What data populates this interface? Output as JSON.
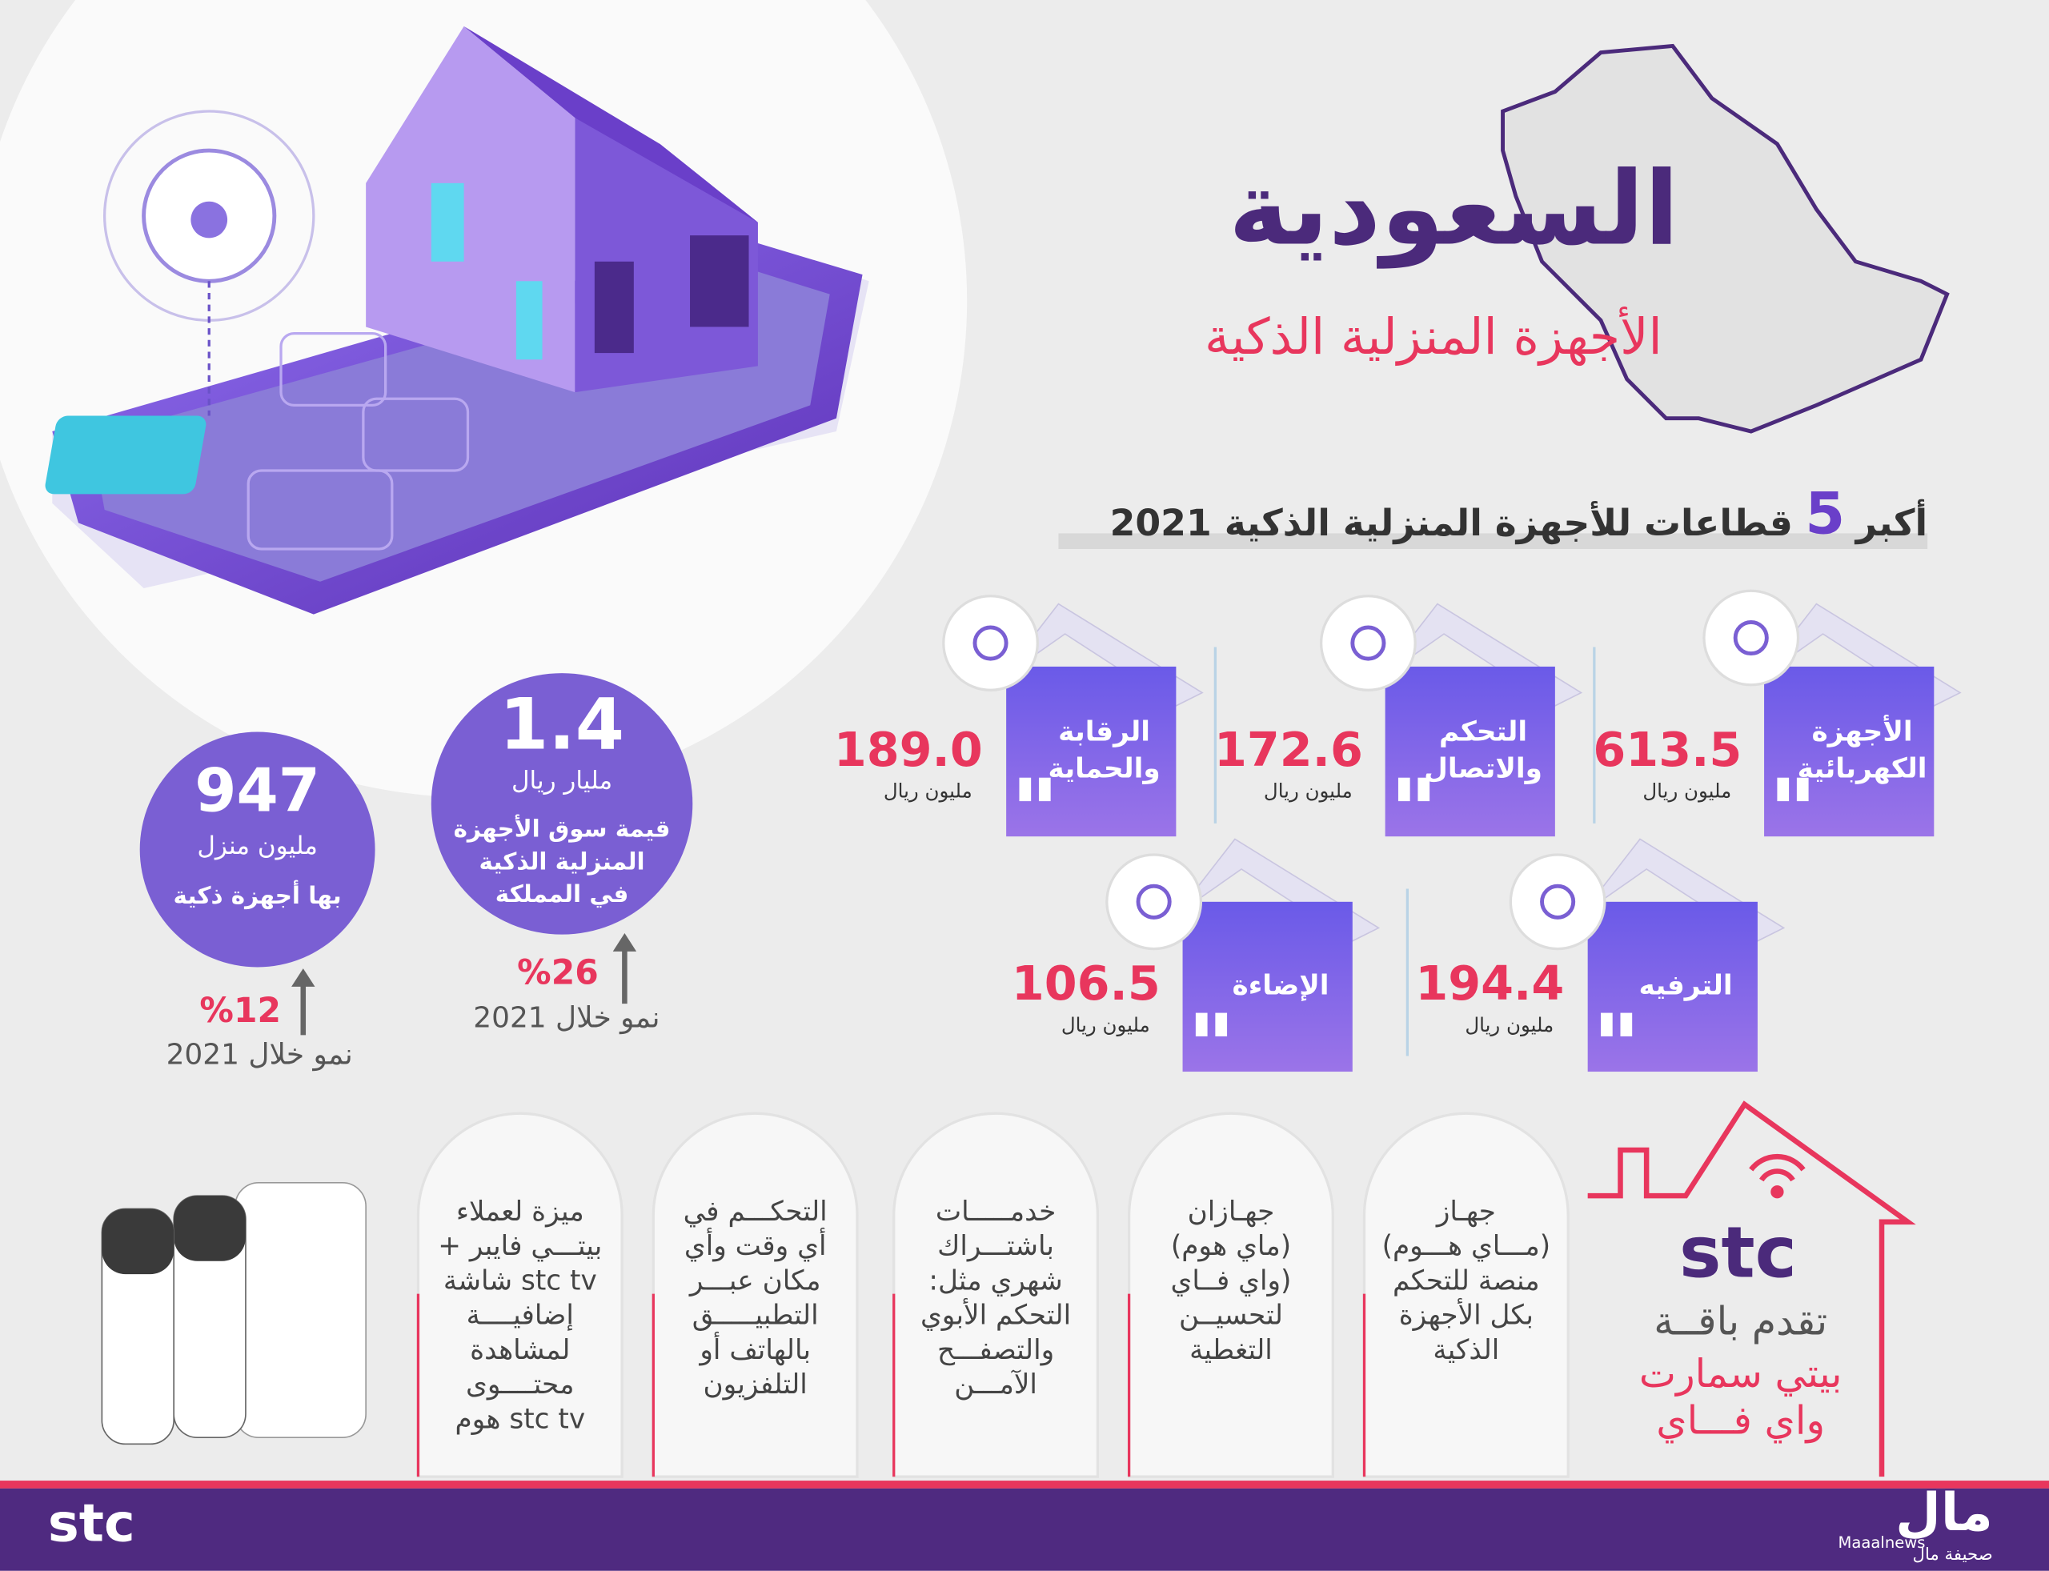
{
  "header": {
    "title": "السعودية",
    "subtitle": "الأجهزة المنزلية الذكية"
  },
  "stats": [
    {
      "value": "947",
      "unit": "مليون منزل",
      "label_lines": [
        "بها أجهزة ذكية"
      ],
      "growth": "%12",
      "growth_label": "نمو خلال 2021"
    },
    {
      "value": "1.4",
      "unit": "مليار ريال",
      "label_lines": [
        "قيمة سوق الأجهزة",
        "المنزلية الذكية",
        "في المملكة"
      ],
      "growth": "%26",
      "growth_label": "نمو خلال 2021"
    }
  ],
  "sectors": {
    "heading": {
      "before": "أكبر",
      "number": "5",
      "after": "قطاعات للأجهزة المنزلية الذكية 2021"
    },
    "items": [
      {
        "name_lines": [
          "الأجهزة",
          "الكهربائية"
        ],
        "value": "613.5",
        "unit": "مليون ريال"
      },
      {
        "name_lines": [
          "التحكم",
          "والاتصال"
        ],
        "value": "172.6",
        "unit": "مليون ريال"
      },
      {
        "name_lines": [
          "الرقابة",
          "والحماية"
        ],
        "value": "189.0",
        "unit": "مليون ريال"
      },
      {
        "name_lines": [
          "الترفيه"
        ],
        "value": "194.4",
        "unit": "مليون ريال"
      },
      {
        "name_lines": [
          "الإضاءة"
        ],
        "value": "106.5",
        "unit": "مليون ريال"
      }
    ]
  },
  "offer": {
    "brand": "stc",
    "lines": [
      "تقدم باقــة"
    ],
    "highlight_lines": [
      "بيتي سمارت",
      "واي فـــاي"
    ]
  },
  "features": [
    {
      "lines": [
        "جهـاز",
        "(مـــاي هـــوم)",
        "منصة للتحكم",
        "بكل الأجهزة",
        "الذكية"
      ]
    },
    {
      "lines": [
        "جهـازان",
        "(ماي هوم)",
        "(واي فــاي",
        "لتحسيــن",
        "التغطية"
      ]
    },
    {
      "lines": [
        "خدمـــــات",
        "باشتـــراك",
        "شهري مثل:",
        "التحكم الأبوي",
        "والتصفـــح",
        "الآمـــن"
      ]
    },
    {
      "lines": [
        "التحكـــم في",
        "أي وقت وأي",
        "مكان عبـــر",
        "التطبيـــــق",
        "بالهاتف أو",
        "التلفزيون"
      ]
    },
    {
      "lines": [
        "ميزة لعملاء",
        "بيتـــي فايبر +",
        "stc tv شاشة",
        "إضافيــــة",
        "لمشاهدة",
        "محتــــوى",
        "stc tv هوم"
      ]
    }
  ],
  "footer": {
    "brand": "stc",
    "twitter": "Maaalnews",
    "logo": "مال",
    "logo_sub": "صحيفة مال"
  }
}
